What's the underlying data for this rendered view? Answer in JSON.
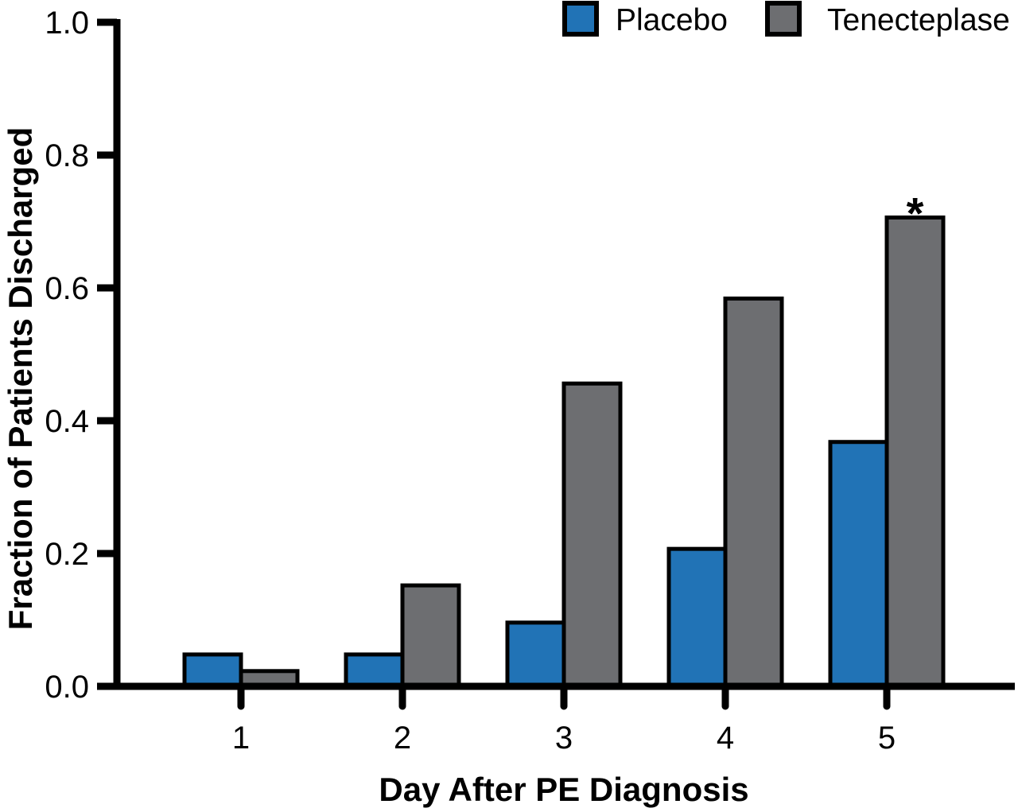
{
  "chart_data": {
    "type": "bar",
    "title": "",
    "xlabel": "Day After PE Diagnosis",
    "ylabel": "Fraction of Patients Discharged",
    "categories": [
      "1",
      "2",
      "3",
      "4",
      "5"
    ],
    "series": [
      {
        "name": "Placebo",
        "color": "#2173b6",
        "values": [
          0.048,
          0.048,
          0.096,
          0.207,
          0.368
        ]
      },
      {
        "name": "Tenecteplase",
        "color": "#6d6e71",
        "values": [
          0.023,
          0.152,
          0.456,
          0.584,
          0.706
        ]
      }
    ],
    "ylim": [
      0,
      1.0
    ],
    "yticks": [
      "0.0",
      "0.2",
      "0.4",
      "0.6",
      "0.8",
      "1.0"
    ],
    "grid": false,
    "legend_position": "top",
    "annotations": [
      {
        "text": "*",
        "category_index": 4,
        "series_index": 1
      }
    ],
    "colors": {
      "axis": "#000000",
      "bar_border": "#000000",
      "background": "#ffffff"
    }
  }
}
